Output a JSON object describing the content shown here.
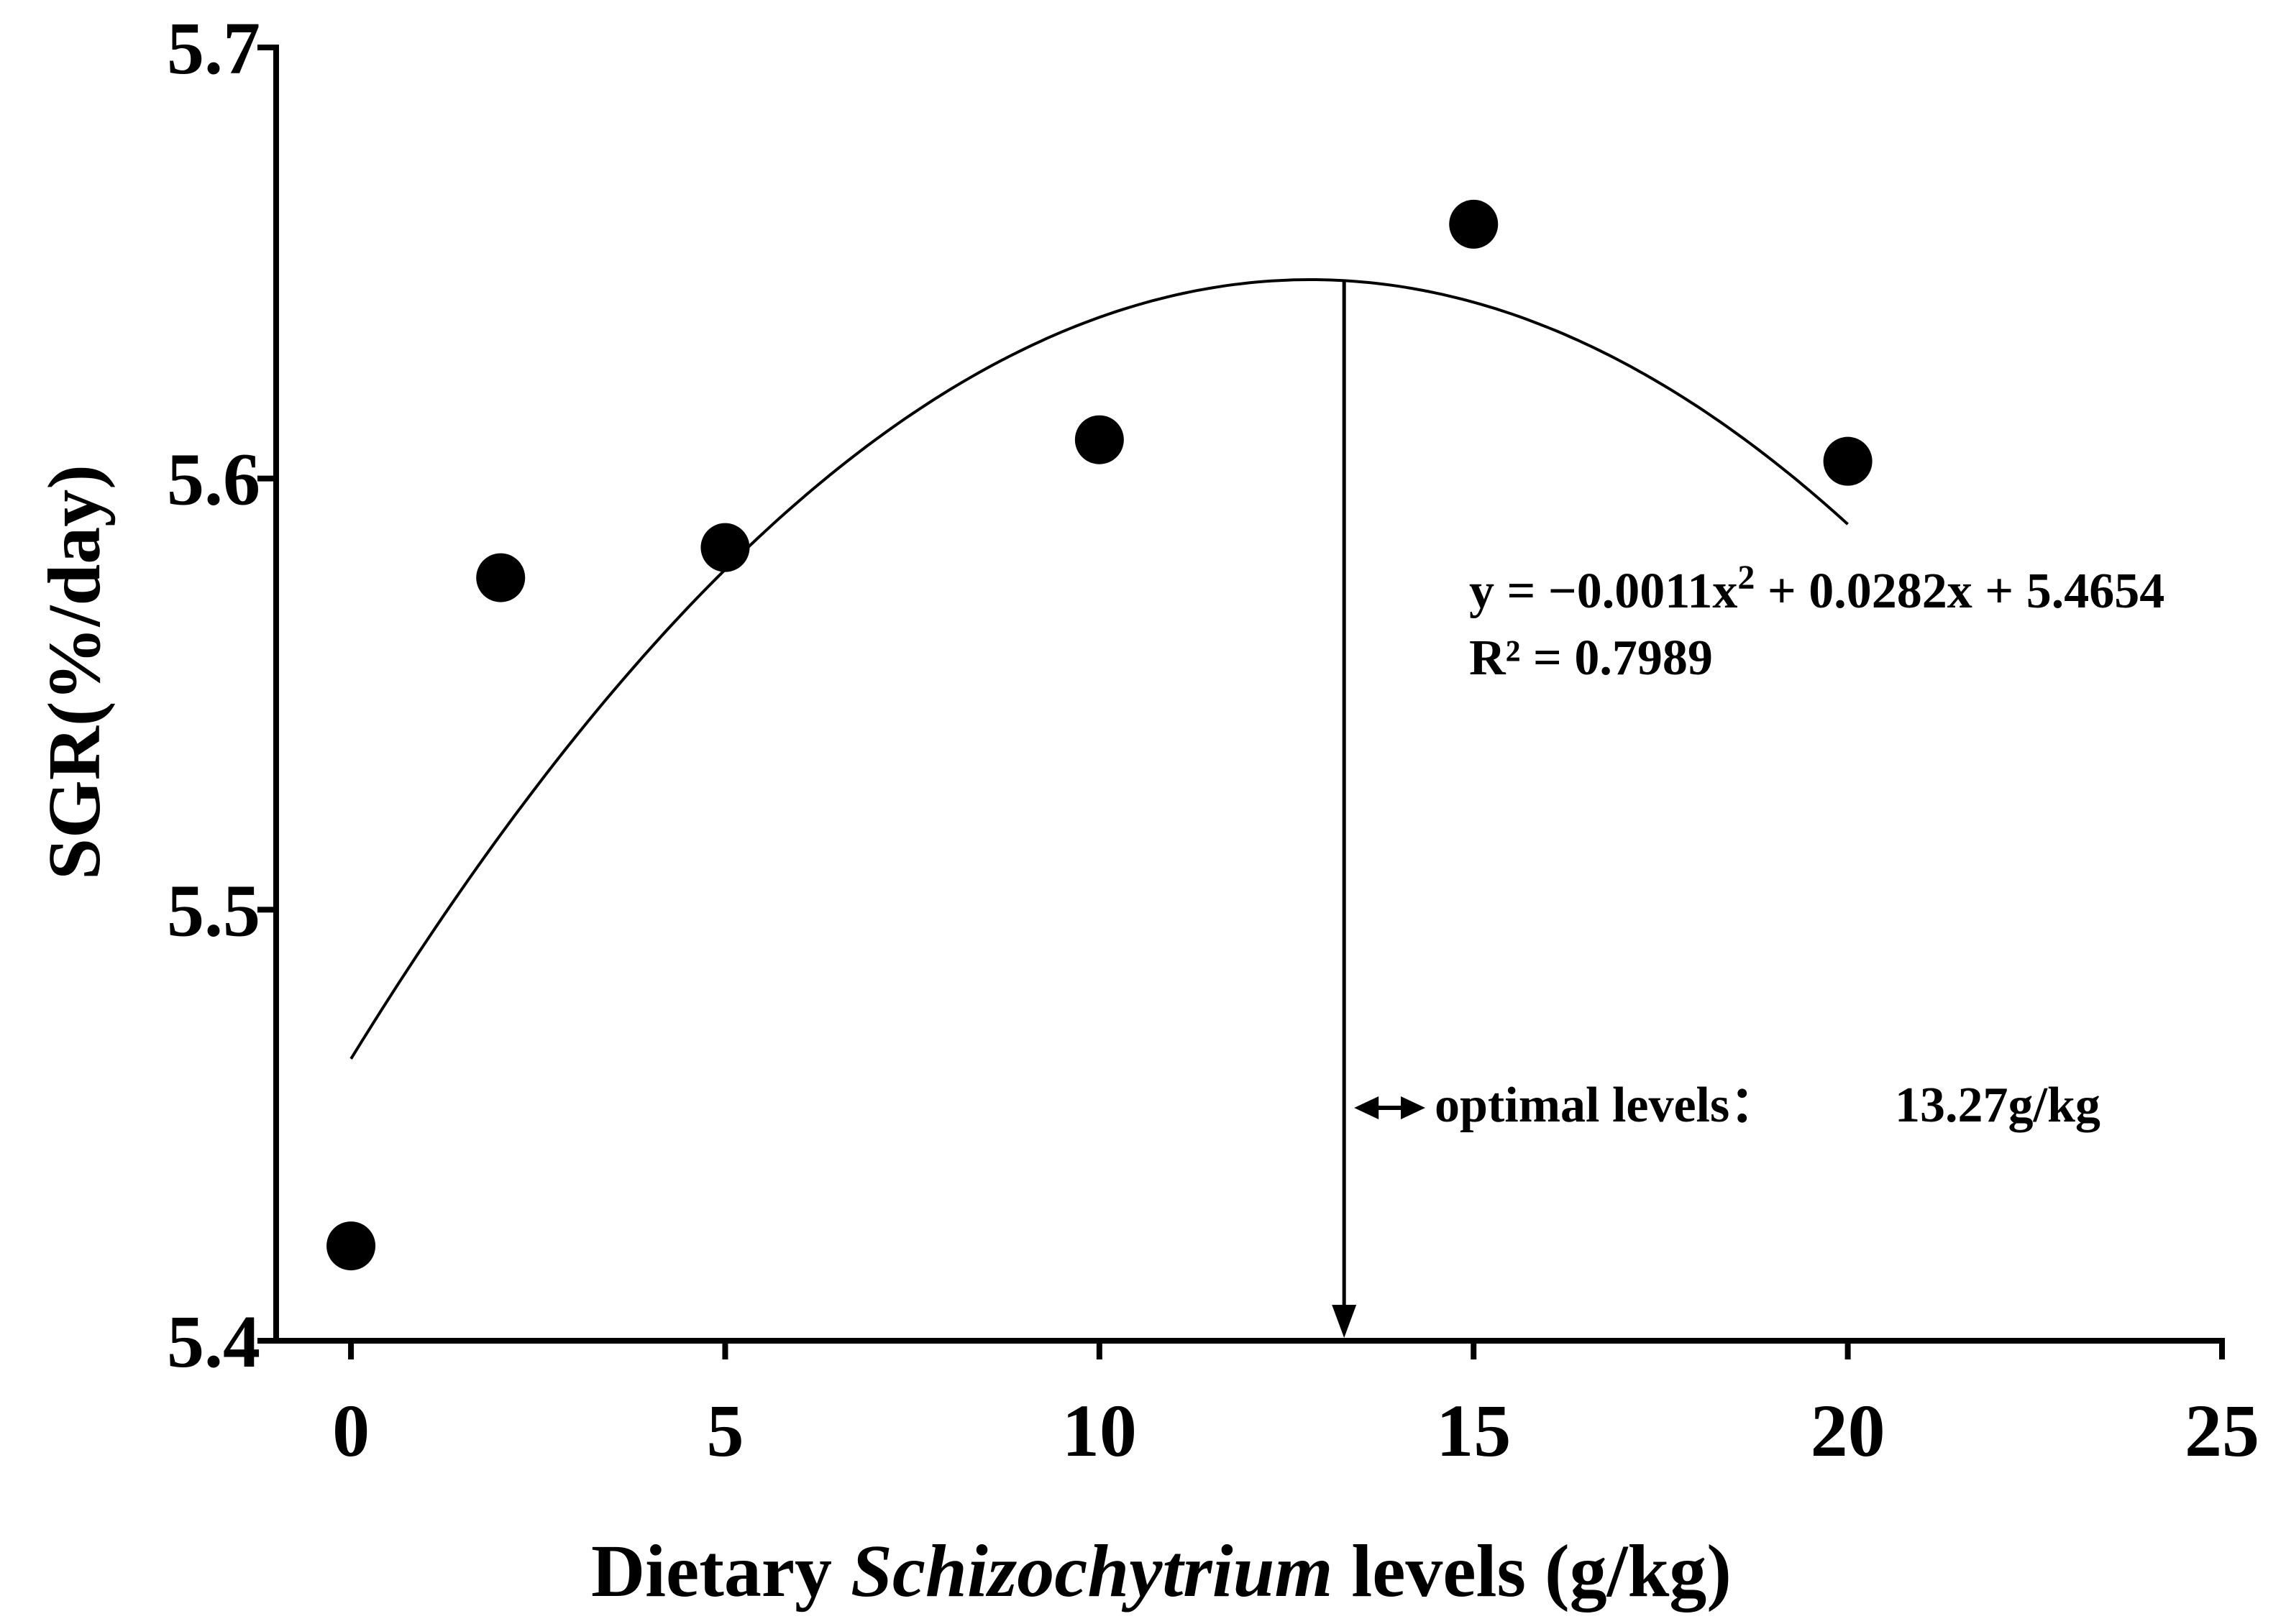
{
  "chart_data": {
    "type": "scatter",
    "title": "",
    "xlabel_parts": {
      "prefix": "Dietary",
      "italic": "Schizochytrium",
      "suffix": "levels (g/kg)"
    },
    "ylabel": "SGR(%/day)",
    "xlim": [
      -1,
      25
    ],
    "ylim": [
      5.4,
      5.7
    ],
    "xticks": [
      0,
      5,
      10,
      15,
      20,
      25
    ],
    "yticks": [
      5.4,
      5.5,
      5.6,
      5.7
    ],
    "xtick_labels": [
      "0",
      "5",
      "10",
      "15",
      "20",
      "25"
    ],
    "ytick_labels": [
      "5.4",
      "5.5",
      "5.6",
      "5.7"
    ],
    "series": [
      {
        "name": "SGR",
        "x": [
          0,
          2,
          5,
          10,
          15,
          20
        ],
        "y": [
          5.422,
          5.577,
          5.584,
          5.609,
          5.659,
          5.604
        ]
      }
    ],
    "fit": {
      "type": "quadratic",
      "a": -0.0011,
      "b": 0.0282,
      "c": 5.4654,
      "x_range": [
        0,
        20
      ],
      "equation_prefix": "y = −0.0011x",
      "equation_sup": "2",
      "equation_suffix": " + 0.0282x + 5.4654",
      "r2_label": "R² = 0.7989"
    },
    "optimal": {
      "x": 13.27,
      "label": "optimal levels：",
      "value_label": "13.27g/kg"
    }
  }
}
